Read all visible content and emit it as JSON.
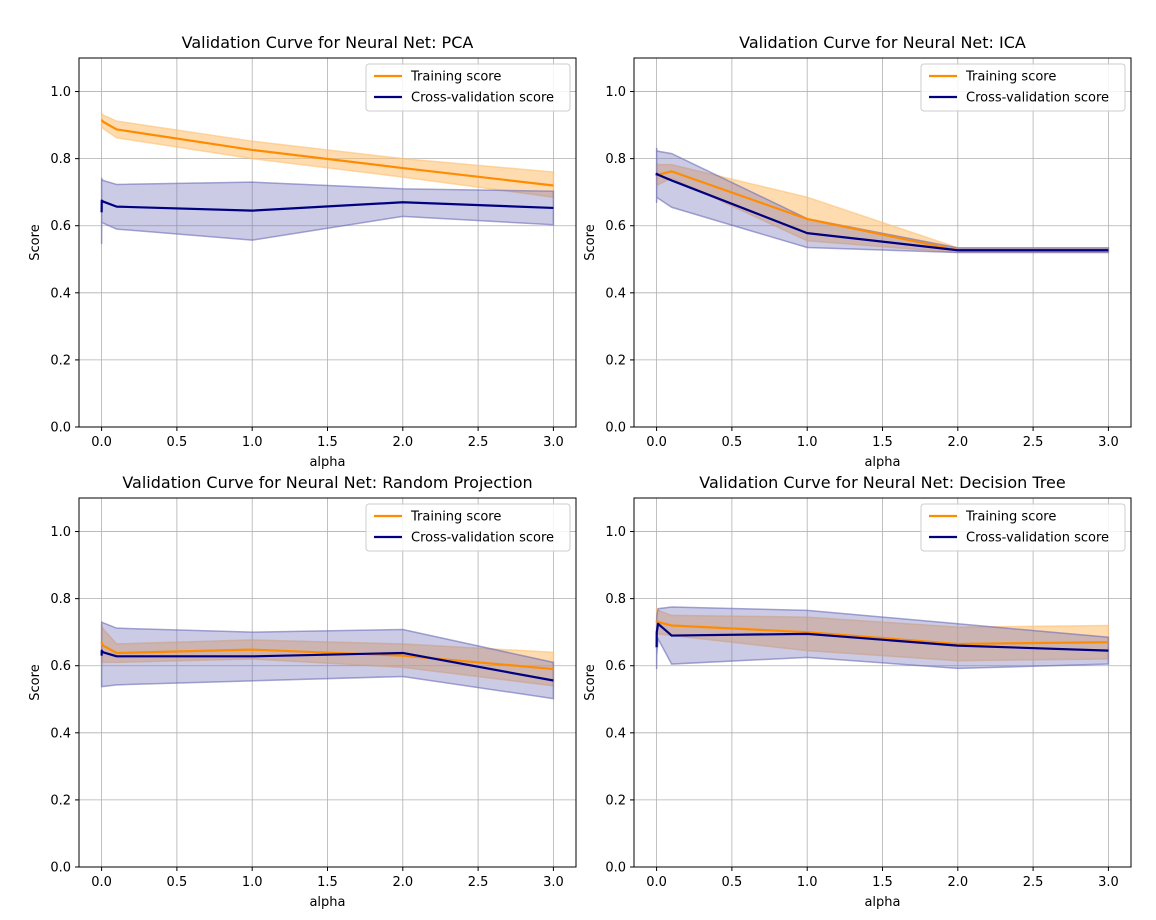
{
  "colors": {
    "training": "#ff8c00",
    "training_band": "#ffc070",
    "cross_validation": "#000080",
    "cross_validation_band": "#6a6ab8",
    "grid": "#b0b0b0"
  },
  "chart_data": [
    {
      "type": "line",
      "title": "Validation Curve for Neural Net: PCA",
      "xlabel": "alpha",
      "ylabel": "Score",
      "xlim": [
        -0.15,
        3.15
      ],
      "ylim": [
        0.0,
        1.1
      ],
      "xticks": [
        0.0,
        0.5,
        1.0,
        1.5,
        2.0,
        2.5,
        3.0
      ],
      "yticks": [
        0.0,
        0.2,
        0.4,
        0.6,
        0.8,
        1.0
      ],
      "grid": true,
      "legend": "top-right",
      "x": [
        0.0001,
        0.001,
        0.01,
        0.1,
        1.0,
        2.0,
        3.0
      ],
      "series": [
        {
          "name": "Training score",
          "values": [
            0.915,
            0.915,
            0.91,
            0.887,
            0.826,
            0.772,
            0.72
          ],
          "lower": [
            0.895,
            0.895,
            0.89,
            0.862,
            0.8,
            0.745,
            0.685
          ],
          "upper": [
            0.935,
            0.935,
            0.93,
            0.912,
            0.852,
            0.8,
            0.76
          ]
        },
        {
          "name": "Cross-validation score",
          "values": [
            0.64,
            0.675,
            0.672,
            0.657,
            0.645,
            0.67,
            0.653
          ],
          "lower": [
            0.545,
            0.61,
            0.608,
            0.59,
            0.557,
            0.628,
            0.603
          ],
          "upper": [
            0.735,
            0.74,
            0.735,
            0.723,
            0.73,
            0.71,
            0.703
          ]
        }
      ]
    },
    {
      "type": "line",
      "title": "Validation Curve for Neural Net: ICA",
      "xlabel": "alpha",
      "ylabel": "Score",
      "xlim": [
        -0.15,
        3.15
      ],
      "ylim": [
        0.0,
        1.1
      ],
      "xticks": [
        0.0,
        0.5,
        1.0,
        1.5,
        2.0,
        2.5,
        3.0
      ],
      "yticks": [
        0.0,
        0.2,
        0.4,
        0.6,
        0.8,
        1.0
      ],
      "grid": true,
      "legend": "top-right",
      "x": [
        0.0001,
        0.001,
        0.01,
        0.1,
        1.0,
        2.0,
        3.0
      ],
      "series": [
        {
          "name": "Training score",
          "values": [
            0.755,
            0.755,
            0.752,
            0.762,
            0.62,
            0.527,
            0.527
          ],
          "lower": [
            0.725,
            0.725,
            0.722,
            0.742,
            0.555,
            0.52,
            0.52
          ],
          "upper": [
            0.785,
            0.785,
            0.782,
            0.782,
            0.685,
            0.534,
            0.534
          ]
        },
        {
          "name": "Cross-validation score",
          "values": [
            0.75,
            0.755,
            0.752,
            0.735,
            0.578,
            0.527,
            0.527
          ],
          "lower": [
            0.668,
            0.685,
            0.682,
            0.655,
            0.535,
            0.52,
            0.52
          ],
          "upper": [
            0.832,
            0.825,
            0.822,
            0.815,
            0.621,
            0.534,
            0.534
          ]
        }
      ]
    },
    {
      "type": "line",
      "title": "Validation Curve for Neural Net: Random Projection",
      "xlabel": "alpha",
      "ylabel": "Score",
      "xlim": [
        -0.15,
        3.15
      ],
      "ylim": [
        0.0,
        1.1
      ],
      "xticks": [
        0.0,
        0.5,
        1.0,
        1.5,
        2.0,
        2.5,
        3.0
      ],
      "yticks": [
        0.0,
        0.2,
        0.4,
        0.6,
        0.8,
        1.0
      ],
      "grid": true,
      "legend": "top-right",
      "x": [
        0.0001,
        0.001,
        0.01,
        0.1,
        1.0,
        2.0,
        3.0
      ],
      "series": [
        {
          "name": "Training score",
          "values": [
            0.665,
            0.668,
            0.66,
            0.638,
            0.648,
            0.63,
            0.59
          ],
          "lower": [
            0.605,
            0.615,
            0.61,
            0.61,
            0.62,
            0.595,
            0.54
          ],
          "upper": [
            0.725,
            0.72,
            0.71,
            0.665,
            0.677,
            0.665,
            0.64
          ]
        },
        {
          "name": "Cross-validation score",
          "values": [
            0.63,
            0.645,
            0.64,
            0.628,
            0.628,
            0.638,
            0.556
          ],
          "lower": [
            0.535,
            0.54,
            0.538,
            0.543,
            0.555,
            0.568,
            0.502
          ],
          "upper": [
            0.725,
            0.73,
            0.728,
            0.712,
            0.7,
            0.708,
            0.61
          ]
        }
      ]
    },
    {
      "type": "line",
      "title": "Validation Curve for Neural Net: Decision Tree",
      "xlabel": "alpha",
      "ylabel": "Score",
      "xlim": [
        -0.15,
        3.15
      ],
      "ylim": [
        0.0,
        1.1
      ],
      "xticks": [
        0.0,
        0.5,
        1.0,
        1.5,
        2.0,
        2.5,
        3.0
      ],
      "yticks": [
        0.0,
        0.2,
        0.4,
        0.6,
        0.8,
        1.0
      ],
      "grid": true,
      "legend": "top-right",
      "x": [
        0.0001,
        0.001,
        0.01,
        0.1,
        1.0,
        2.0,
        3.0
      ],
      "series": [
        {
          "name": "Training score",
          "values": [
            0.73,
            0.732,
            0.73,
            0.72,
            0.7,
            0.665,
            0.67
          ],
          "lower": [
            0.69,
            0.695,
            0.695,
            0.69,
            0.645,
            0.615,
            0.62
          ],
          "upper": [
            0.77,
            0.77,
            0.765,
            0.75,
            0.745,
            0.715,
            0.72
          ]
        },
        {
          "name": "Cross-validation score",
          "values": [
            0.655,
            0.7,
            0.725,
            0.69,
            0.695,
            0.66,
            0.645
          ],
          "lower": [
            0.59,
            0.63,
            0.68,
            0.605,
            0.625,
            0.592,
            0.605
          ],
          "upper": [
            0.72,
            0.75,
            0.77,
            0.775,
            0.765,
            0.725,
            0.685
          ]
        }
      ]
    }
  ]
}
